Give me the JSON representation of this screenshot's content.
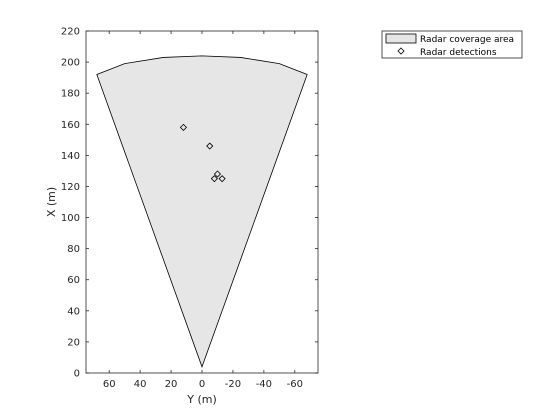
{
  "chart_data": {
    "type": "scatter",
    "title": "",
    "xlabel": "Y (m)",
    "ylabel": "X (m)",
    "xlim": [
      75,
      -75
    ],
    "ylim": [
      0,
      220
    ],
    "x_reversed": true,
    "xticks": [
      60,
      40,
      20,
      0,
      -20,
      -40,
      -60
    ],
    "yticks": [
      0,
      20,
      40,
      60,
      80,
      100,
      120,
      140,
      160,
      180,
      200,
      220
    ],
    "xtick_labels": [
      "60",
      "40",
      "20",
      "0",
      "-20",
      "-40",
      "-60"
    ],
    "ytick_labels": [
      "0",
      "20",
      "40",
      "60",
      "80",
      "100",
      "120",
      "140",
      "160",
      "180",
      "200",
      "220"
    ],
    "grid": false,
    "box": true,
    "legend_position": "outside-top-right",
    "coverage_area": {
      "name": "Radar coverage area",
      "fill_color": "#e6e6e6",
      "edge_color": "#000000",
      "points": [
        {
          "y": 0,
          "x": 4
        },
        {
          "y": -68,
          "x": 192
        },
        {
          "y": -50,
          "x": 199
        },
        {
          "y": -25,
          "x": 203
        },
        {
          "y": 0,
          "x": 204
        },
        {
          "y": 25,
          "x": 203
        },
        {
          "y": 50,
          "x": 199
        },
        {
          "y": 68,
          "x": 192
        }
      ]
    },
    "detections": {
      "name": "Radar detections",
      "marker": "diamond",
      "color": "#000000",
      "points": [
        {
          "y": 12,
          "x": 158
        },
        {
          "y": -5,
          "x": 146
        },
        {
          "y": -10,
          "x": 128
        },
        {
          "y": -8,
          "x": 125
        },
        {
          "y": -13,
          "x": 125
        }
      ]
    }
  }
}
